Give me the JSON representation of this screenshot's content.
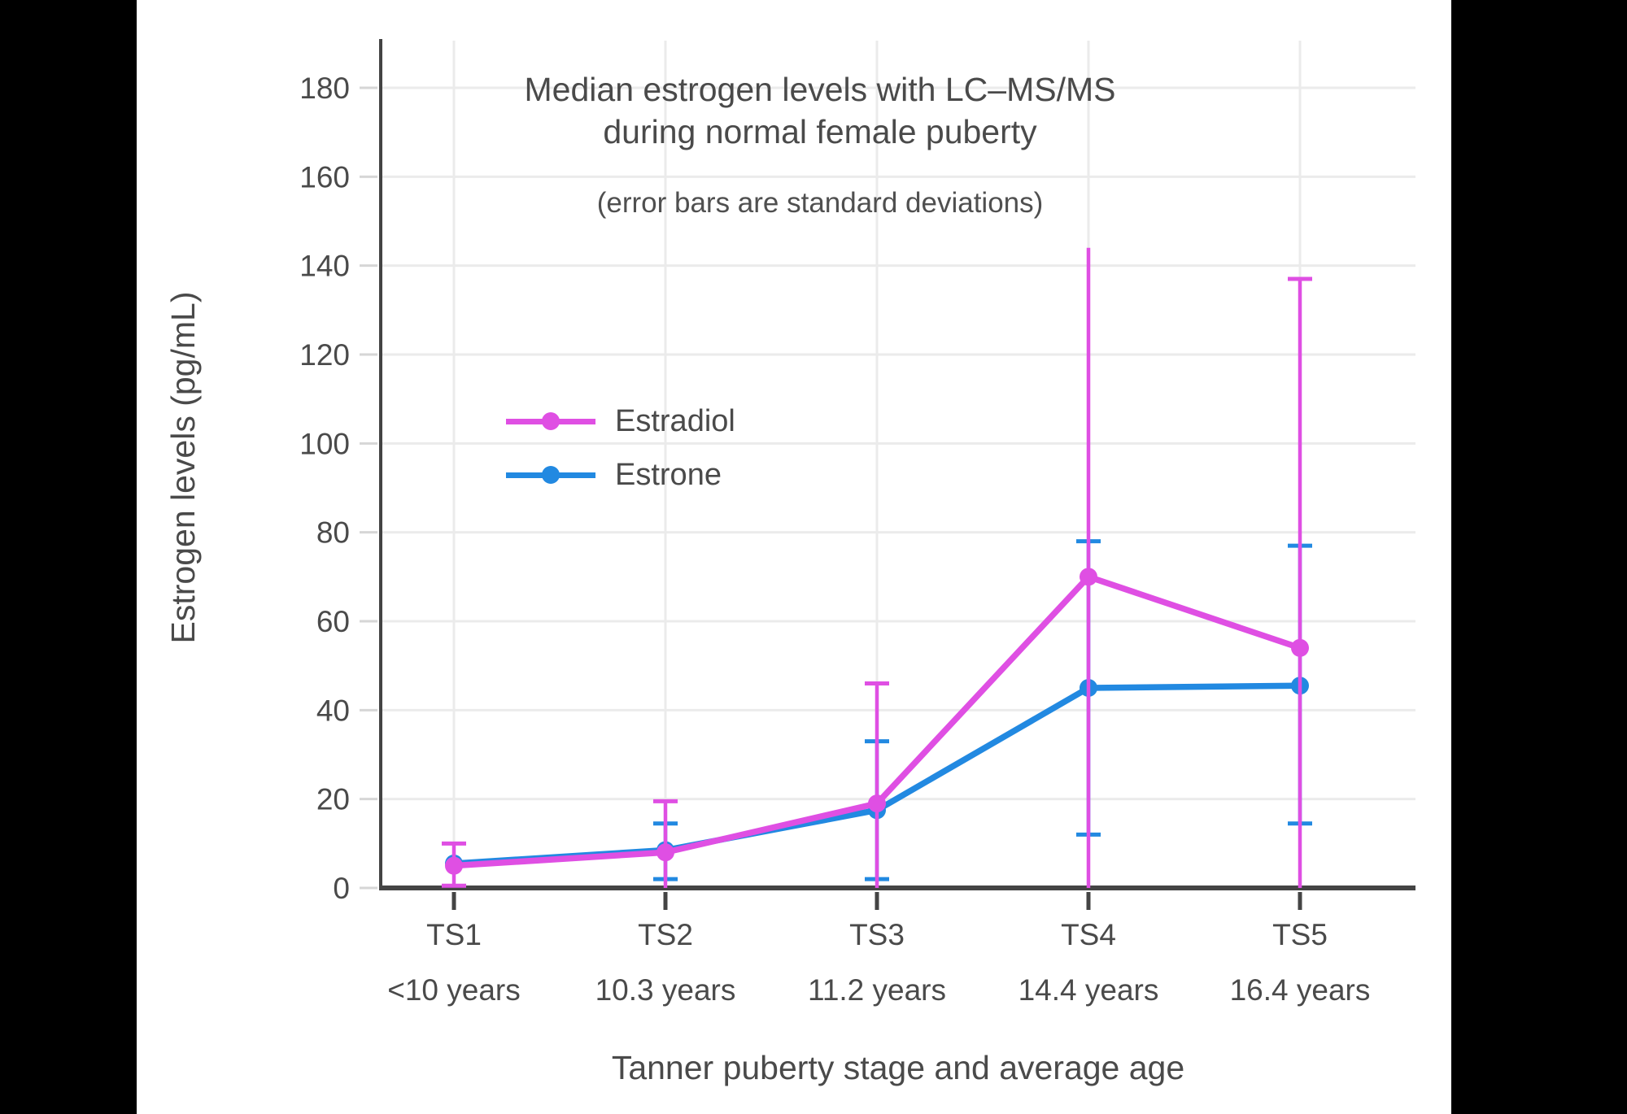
{
  "window": {
    "outer_background": "#000000",
    "card_background": "#ffffff"
  },
  "chart_data": {
    "type": "line",
    "title_line1": "Median estrogen levels with LC–MS/MS",
    "title_line2": "during normal female puberty",
    "subtitle": "(error bars are standard deviations)",
    "xlabel": "Tanner puberty stage and average age",
    "ylabel": "Estrogen levels (pg/mL)",
    "categories": [
      "TS1",
      "TS2",
      "TS3",
      "TS4",
      "TS5"
    ],
    "category_sublabels": [
      "<10 years",
      "10.3 years",
      "11.2 years",
      "14.4 years",
      "16.4 years"
    ],
    "y_ticks": [
      0,
      20,
      40,
      60,
      80,
      100,
      120,
      140,
      160,
      180
    ],
    "ylim": [
      0,
      191
    ],
    "grid": true,
    "colors": {
      "grid": "#ebebeb",
      "axis": "#444444",
      "tick": "#d6d6d6",
      "text": "#4a4a4a"
    },
    "series": [
      {
        "name": "Estrone",
        "color": "#2289e1",
        "values": [
          5.5,
          8.5,
          17.5,
          45,
          45.5
        ],
        "error_top": [
          null,
          14.5,
          33,
          78,
          77
        ],
        "error_bottom": [
          null,
          2,
          2,
          12,
          14.5
        ],
        "cap_top": [
          false,
          true,
          true,
          true,
          true
        ],
        "cap_bottom": [
          false,
          true,
          true,
          true,
          true
        ]
      },
      {
        "name": "Estradiol",
        "color": "#df4fe3",
        "values": [
          5,
          8,
          19,
          70,
          54
        ],
        "error_top": [
          10,
          19.5,
          46,
          144,
          137
        ],
        "error_bottom": [
          0.5,
          0,
          0,
          0,
          0
        ],
        "cap_top": [
          true,
          true,
          true,
          false,
          true
        ],
        "cap_bottom": [
          true,
          false,
          false,
          false,
          false
        ]
      }
    ],
    "legend": {
      "items": [
        {
          "label": "Estradiol",
          "color": "#df4fe3"
        },
        {
          "label": "Estrone",
          "color": "#2289e1"
        }
      ]
    }
  }
}
